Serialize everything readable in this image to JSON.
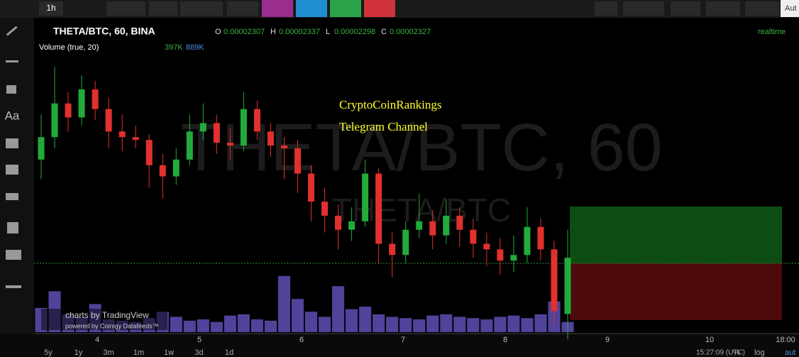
{
  "toolbar": {
    "interval": "1h",
    "auto": "Aut"
  },
  "left_toolbar": {
    "text_tool": "Aa"
  },
  "legend": {
    "symbol": "THETA/BTC, 60, BINA",
    "ohlc": [
      {
        "label": "O",
        "value": "0.00002307"
      },
      {
        "label": "H",
        "value": "0.00002337"
      },
      {
        "label": "L",
        "value": "0.00002298"
      },
      {
        "label": "C",
        "value": "0.00002327"
      }
    ],
    "volume": "Volume (true, 20)",
    "volume_values": [
      "397K",
      "889K"
    ],
    "status": "realtime"
  },
  "annotation": [
    "CryptoCoinRankings",
    "Telegram Channel"
  ],
  "watermark": {
    "main": "THETA/BTC, 60",
    "sub": "THETA/BTC"
  },
  "branding": {
    "line1": "charts by TradingView",
    "line2": "powered by Coinigy Datafeeds™"
  },
  "chart_data": {
    "type": "candlestick",
    "open": [
      2.362e-05,
      2.37e-05,
      2.382e-05,
      2.377e-05,
      2.387e-05,
      2.38e-05,
      2.372e-05,
      2.37e-05,
      2.369e-05,
      2.36e-05,
      2.356e-05,
      2.362e-05,
      2.372e-05,
      2.375e-05,
      2.368e-05,
      2.367e-05,
      2.38e-05,
      2.372e-05,
      2.367e-05,
      2.366e-05,
      2.357e-05,
      2.347e-05,
      2.342e-05,
      2.337e-05,
      2.34e-05,
      2.357e-05,
      2.332e-05,
      2.328e-05,
      2.337e-05,
      2.34e-05,
      2.335e-05,
      2.342e-05,
      2.337e-05,
      2.332e-05,
      2.33e-05,
      2.326e-05,
      2.328e-05,
      2.338e-05,
      2.33e-05,
      2.307e-05
    ],
    "high": [
      2.378e-05,
      2.395e-05,
      2.386e-05,
      2.392e-05,
      2.39e-05,
      2.384e-05,
      2.378e-05,
      2.374e-05,
      2.371e-05,
      2.364e-05,
      2.366e-05,
      2.378e-05,
      2.382e-05,
      2.378e-05,
      2.373e-05,
      2.386e-05,
      2.383e-05,
      2.375e-05,
      2.37e-05,
      2.369e-05,
      2.36e-05,
      2.352e-05,
      2.346e-05,
      2.345e-05,
      2.362e-05,
      2.359e-05,
      2.336e-05,
      2.34e-05,
      2.35e-05,
      2.344e-05,
      2.348e-05,
      2.345e-05,
      2.341e-05,
      2.336e-05,
      2.334e-05,
      2.335e-05,
      2.345e-05,
      2.341e-05,
      2.333e-05,
      2.337e-05
    ],
    "low": [
      2.355e-05,
      2.366e-05,
      2.372e-05,
      2.374e-05,
      2.376e-05,
      2.366e-05,
      2.365e-05,
      2.366e-05,
      2.352e-05,
      2.348e-05,
      2.353e-05,
      2.36e-05,
      2.369e-05,
      2.364e-05,
      2.362e-05,
      2.365e-05,
      2.369e-05,
      2.363e-05,
      2.355e-05,
      2.35e-05,
      2.34e-05,
      2.336e-05,
      2.33e-05,
      2.333e-05,
      2.338e-05,
      2.325e-05,
      2.32e-05,
      2.325e-05,
      2.334e-05,
      2.33e-05,
      2.332e-05,
      2.331e-05,
      2.327e-05,
      2.324e-05,
      2.321e-05,
      2.322e-05,
      2.325e-05,
      2.326e-05,
      2.303e-05,
      2.298e-05
    ],
    "close": [
      2.37e-05,
      2.382e-05,
      2.377e-05,
      2.387e-05,
      2.38e-05,
      2.372e-05,
      2.37e-05,
      2.369e-05,
      2.36e-05,
      2.356e-05,
      2.362e-05,
      2.372e-05,
      2.375e-05,
      2.368e-05,
      2.367e-05,
      2.38e-05,
      2.372e-05,
      2.367e-05,
      2.366e-05,
      2.357e-05,
      2.347e-05,
      2.342e-05,
      2.337e-05,
      2.34e-05,
      2.357e-05,
      2.332e-05,
      2.328e-05,
      2.337e-05,
      2.34e-05,
      2.335e-05,
      2.342e-05,
      2.337e-05,
      2.332e-05,
      2.33e-05,
      2.326e-05,
      2.328e-05,
      2.338e-05,
      2.33e-05,
      2.308e-05,
      2.327e-05
    ],
    "volume": [
      950000,
      1600000,
      700000,
      600000,
      1100000,
      500000,
      450000,
      400000,
      550000,
      800000,
      600000,
      450000,
      500000,
      400000,
      650000,
      700000,
      500000,
      450000,
      2200000,
      1300000,
      800000,
      600000,
      1800000,
      900000,
      1000000,
      700000,
      600000,
      550000,
      500000,
      650000,
      700000,
      600000,
      550000,
      500000,
      600000,
      650000,
      550000,
      700000,
      1200000,
      397000
    ],
    "ylim": [
      2.3e-05,
      2.41e-05
    ],
    "volume_lim": [
      0,
      2500000
    ],
    "up_color": "#22ab3c",
    "down_color": "#e0312f",
    "volume_color": "#6a5acd"
  },
  "time_axis": [
    "4",
    "5",
    "6",
    "7",
    "8",
    "9",
    "10",
    "18:00"
  ],
  "bottom_bar": {
    "ranges": [
      "5y",
      "1y",
      "3m",
      "1m",
      "1w",
      "3d",
      "1d"
    ],
    "clock": "15:27:09 (UTC)",
    "percent": "%",
    "log": "log",
    "auto": "aut"
  }
}
